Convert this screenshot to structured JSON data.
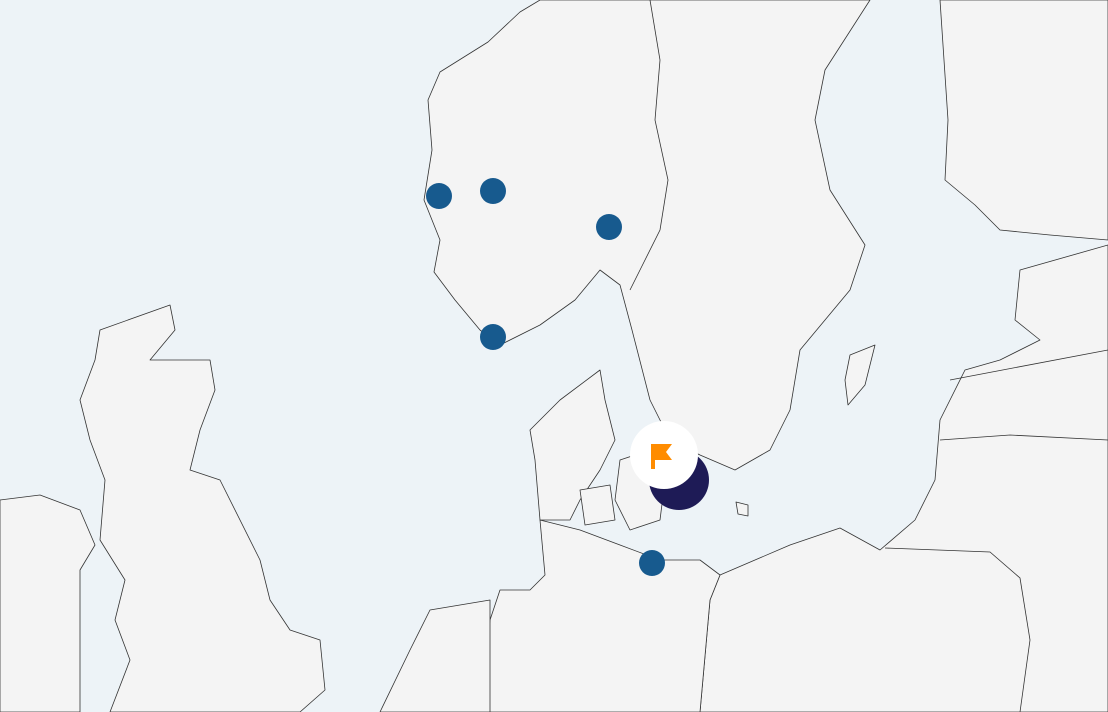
{
  "map": {
    "colors": {
      "sea": "#edf3f7",
      "land": "#f4f4f4",
      "marker": "#175a8e",
      "cluster": "#1e1b56",
      "flag": "#ff8c00"
    },
    "markers": [
      {
        "name": "marker-1",
        "icon": "circle-marker"
      },
      {
        "name": "marker-2",
        "icon": "circle-marker"
      },
      {
        "name": "marker-3",
        "icon": "circle-marker"
      },
      {
        "name": "marker-4",
        "icon": "circle-marker"
      },
      {
        "name": "marker-5",
        "icon": "circle-marker"
      }
    ],
    "selected_marker": {
      "icon": "flag-icon"
    }
  }
}
